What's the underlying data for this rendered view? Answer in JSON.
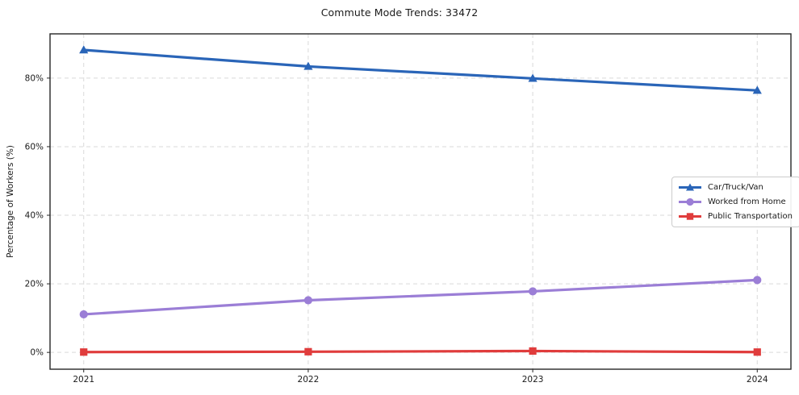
{
  "chart_data": {
    "type": "line",
    "title": "Commute Mode Trends: 33472",
    "xlabel": "",
    "ylabel": "Percentage of Workers (%)",
    "categories": [
      "2021",
      "2022",
      "2023",
      "2024"
    ],
    "series": [
      {
        "name": "Car/Truck/Van",
        "color": "#2a65b8",
        "marker": "triangle",
        "values": [
          88.2,
          83.4,
          79.9,
          76.4
        ]
      },
      {
        "name": "Worked from Home",
        "color": "#9b7ed6",
        "marker": "circle",
        "values": [
          11.1,
          15.2,
          17.8,
          21.1
        ]
      },
      {
        "name": "Public Transportation",
        "color": "#e03c3c",
        "marker": "square",
        "values": [
          0.1,
          0.2,
          0.4,
          0.1
        ]
      }
    ],
    "yticks": [
      {
        "value": 0,
        "label": "0%"
      },
      {
        "value": 20,
        "label": "20%"
      },
      {
        "value": 40,
        "label": "40%"
      },
      {
        "value": 60,
        "label": "60%"
      },
      {
        "value": 80,
        "label": "80%"
      }
    ],
    "ylim": [
      -4.9,
      92.9
    ],
    "grid": true,
    "grid_style": "dashed",
    "legend_position": "center right"
  },
  "colors": {
    "grid": "#d9d9d9",
    "spine": "#262626",
    "tick_text": "#1a1a1a",
    "background": "#ffffff"
  }
}
